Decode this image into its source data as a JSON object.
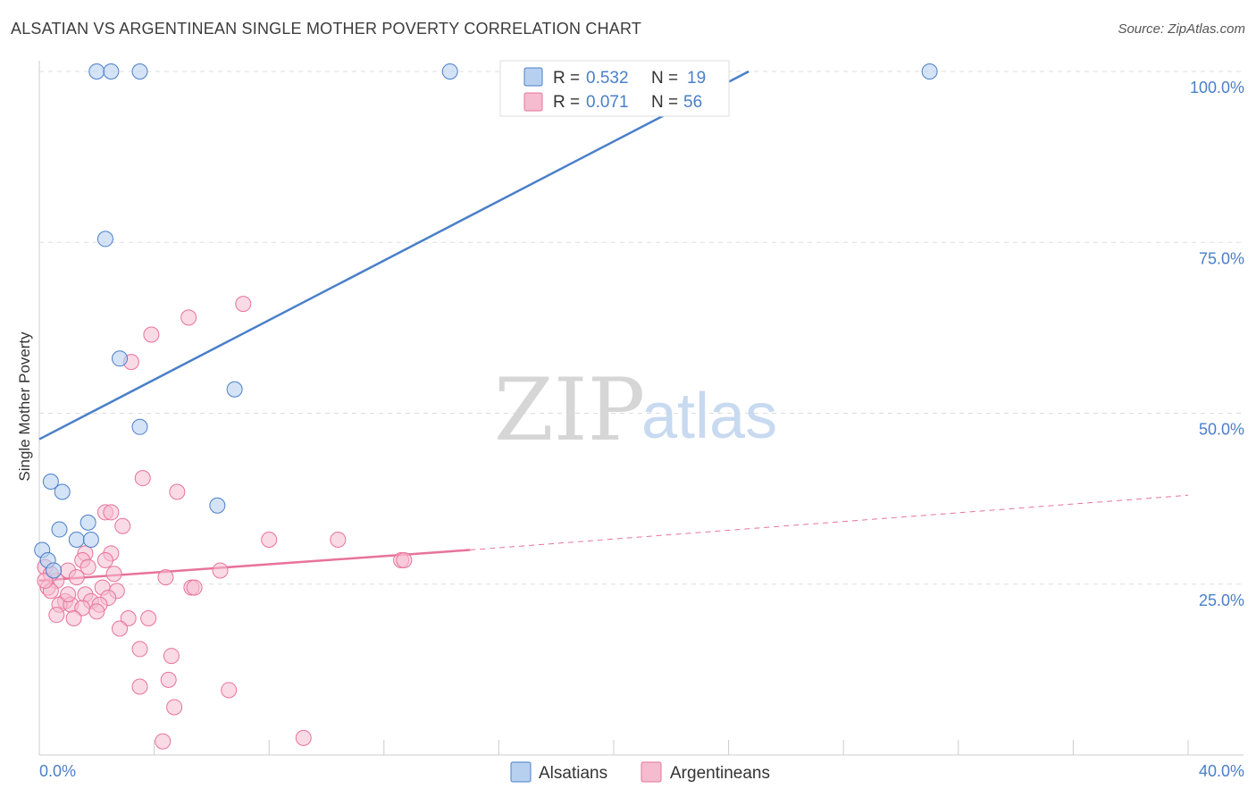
{
  "title": "ALSATIAN VS ARGENTINEAN SINGLE MOTHER POVERTY CORRELATION CHART",
  "source": "Source: ZipAtlas.com",
  "watermark": {
    "zip": "ZIP",
    "atlas": "atlas"
  },
  "colors": {
    "blue": "#4a7fc9",
    "blue_fill": "#b8d0f0",
    "pink": "#e8739a",
    "pink_fill": "#f5bcd0",
    "grid": "#dddddd"
  },
  "legend": {
    "rows": [
      {
        "r_label": "R =",
        "r_value": "0.532",
        "n_label": "N =",
        "n_value": "19"
      },
      {
        "r_label": "R =",
        "r_value": "0.071",
        "n_label": "N =",
        "n_value": "56"
      }
    ]
  },
  "bottom_legend": [
    "Alsatians",
    "Argentineans"
  ],
  "chart_data": {
    "type": "scatter",
    "title": "ALSATIAN VS ARGENTINEAN SINGLE MOTHER POVERTY CORRELATION CHART",
    "xlabel": "",
    "ylabel": "Single Mother Poverty",
    "xlim": [
      0,
      40
    ],
    "ylim": [
      0,
      102
    ],
    "x_tick_labels": [
      "0.0%",
      "40.0%"
    ],
    "y_ticks": [
      25,
      50,
      75,
      100
    ],
    "y_tick_labels": [
      "25.0%",
      "50.0%",
      "75.0%",
      "100.0%"
    ],
    "grid": true,
    "legend_position": "top-center",
    "series": [
      {
        "name": "Alsatians",
        "points": [
          [
            2.0,
            100
          ],
          [
            2.5,
            100
          ],
          [
            3.5,
            100
          ],
          [
            14.3,
            100
          ],
          [
            31.0,
            100
          ],
          [
            2.3,
            75.5
          ],
          [
            2.8,
            58
          ],
          [
            6.8,
            53.5
          ],
          [
            3.5,
            48
          ],
          [
            0.4,
            40
          ],
          [
            0.8,
            38.5
          ],
          [
            6.2,
            36.5
          ],
          [
            0.7,
            33
          ],
          [
            1.7,
            34
          ],
          [
            1.3,
            31.5
          ],
          [
            1.8,
            31.5
          ],
          [
            0.1,
            30
          ],
          [
            0.3,
            28.5
          ],
          [
            0.5,
            27
          ]
        ],
        "trend": {
          "x": [
            0,
            24.7
          ],
          "y": [
            46.2,
            100
          ]
        }
      },
      {
        "name": "Argentineans",
        "points": [
          [
            7.1,
            66
          ],
          [
            5.2,
            64
          ],
          [
            3.9,
            61.5
          ],
          [
            3.2,
            57.5
          ],
          [
            3.6,
            40.5
          ],
          [
            4.8,
            38.5
          ],
          [
            2.3,
            35.5
          ],
          [
            2.5,
            35.5
          ],
          [
            2.9,
            33.5
          ],
          [
            8.0,
            31.5
          ],
          [
            10.4,
            31.5
          ],
          [
            12.6,
            28.5
          ],
          [
            12.7,
            28.5
          ],
          [
            2.5,
            29.5
          ],
          [
            1.6,
            29.5
          ],
          [
            1.5,
            28.5
          ],
          [
            2.3,
            28.5
          ],
          [
            1.7,
            27.5
          ],
          [
            1.0,
            27
          ],
          [
            0.2,
            27.5
          ],
          [
            6.3,
            27
          ],
          [
            2.6,
            26.5
          ],
          [
            4.4,
            26
          ],
          [
            1.3,
            26
          ],
          [
            0.6,
            25.5
          ],
          [
            2.2,
            24.5
          ],
          [
            5.3,
            24.5
          ],
          [
            5.4,
            24.5
          ],
          [
            0.3,
            24.5
          ],
          [
            2.7,
            24
          ],
          [
            0.4,
            24
          ],
          [
            1.6,
            23.5
          ],
          [
            2.4,
            23
          ],
          [
            1.8,
            22.5
          ],
          [
            0.9,
            22.5
          ],
          [
            0.7,
            22
          ],
          [
            1.1,
            22
          ],
          [
            2.1,
            22
          ],
          [
            1.5,
            21.5
          ],
          [
            0.6,
            20.5
          ],
          [
            3.1,
            20
          ],
          [
            3.8,
            20
          ],
          [
            1.2,
            20
          ],
          [
            2.8,
            18.5
          ],
          [
            3.5,
            15.5
          ],
          [
            4.6,
            14.5
          ],
          [
            4.5,
            11
          ],
          [
            3.5,
            10
          ],
          [
            6.6,
            9.5
          ],
          [
            4.7,
            7
          ],
          [
            4.3,
            2
          ],
          [
            9.2,
            2.5
          ],
          [
            0.4,
            26.5
          ],
          [
            0.2,
            25.5
          ],
          [
            1.0,
            23.5
          ],
          [
            2.0,
            21
          ]
        ],
        "trend": {
          "x": [
            0,
            15
          ],
          "y": [
            25.5,
            30
          ]
        },
        "trend_dashed": {
          "x": [
            15,
            40
          ],
          "y": [
            30,
            38
          ]
        }
      }
    ]
  }
}
